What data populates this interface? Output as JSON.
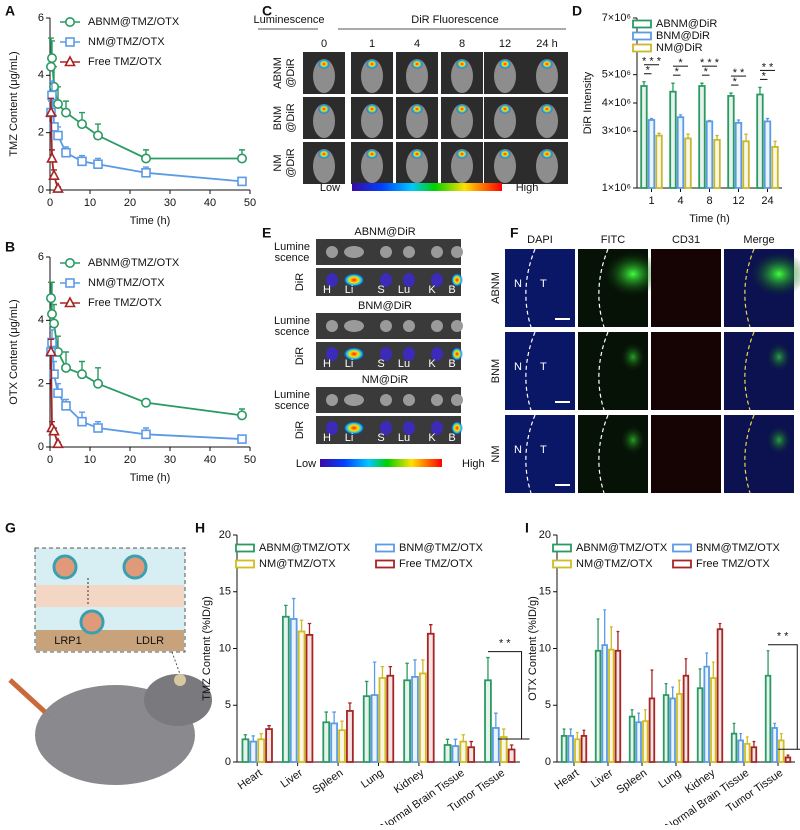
{
  "panel_labels": [
    "A",
    "B",
    "C",
    "D",
    "E",
    "F",
    "G",
    "H",
    "I"
  ],
  "chart_data": [
    {
      "type": "line",
      "y_label": "TMZ Content (μg/mL)",
      "x_label": "Time (h)",
      "xlim": [
        0,
        50
      ],
      "xticks": [
        0,
        10,
        20,
        30,
        40,
        50
      ],
      "ylim": [
        0,
        6
      ],
      "yticks": [
        0,
        2,
        4,
        6
      ],
      "legend": "upper right",
      "series": [
        {
          "name": "ABNM@TMZ/OTX",
          "color": "#2a9a62",
          "marker": "circle",
          "x": [
            0.25,
            0.5,
            1,
            2,
            4,
            8,
            12,
            24,
            48
          ],
          "values": [
            4.3,
            4.6,
            3.6,
            3.0,
            2.7,
            2.3,
            1.9,
            1.1,
            1.1
          ],
          "errors": [
            1.0,
            0.6,
            0.7,
            0.6,
            0.4,
            0.4,
            0.4,
            0.3,
            0.3
          ]
        },
        {
          "name": "NM@TMZ/OTX",
          "color": "#5b9be6",
          "marker": "square",
          "x": [
            0.25,
            0.5,
            1,
            2,
            4,
            8,
            12,
            24,
            48
          ],
          "values": [
            2.7,
            3.3,
            2.2,
            1.9,
            1.3,
            1.0,
            0.9,
            0.6,
            0.3
          ],
          "errors": [
            0.4,
            0.5,
            0.4,
            0.3,
            0.2,
            0.2,
            0.2,
            0.2,
            0.1
          ]
        },
        {
          "name": "Free TMZ/OTX",
          "color": "#a82424",
          "marker": "triangle",
          "x": [
            0.25,
            0.5,
            1,
            2
          ],
          "values": [
            2.7,
            1.1,
            0.5,
            0.05
          ],
          "errors": [
            0.5,
            0.3,
            0.2,
            0.05
          ]
        }
      ]
    },
    {
      "type": "line",
      "y_label": "OTX Content (μg/mL)",
      "x_label": "Time (h)",
      "xlim": [
        0,
        50
      ],
      "xticks": [
        0,
        10,
        20,
        30,
        40,
        50
      ],
      "ylim": [
        0,
        6
      ],
      "yticks": [
        0,
        2,
        4,
        6
      ],
      "legend": "upper right",
      "series": [
        {
          "name": "ABNM@TMZ/OTX",
          "color": "#2a9a62",
          "marker": "circle",
          "x": [
            0.25,
            0.5,
            1,
            2,
            4,
            8,
            12,
            24,
            48
          ],
          "values": [
            4.7,
            4.2,
            3.9,
            3.0,
            2.5,
            2.3,
            2.0,
            1.4,
            1.0
          ],
          "errors": [
            0.5,
            1.0,
            0.6,
            0.5,
            0.5,
            0.4,
            0.5,
            0.1,
            0.2
          ]
        },
        {
          "name": "NM@TMZ/OTX",
          "color": "#5b9be6",
          "marker": "square",
          "x": [
            0.25,
            0.5,
            1,
            2,
            4,
            8,
            12,
            24,
            48
          ],
          "values": [
            3.0,
            3.3,
            2.3,
            1.7,
            1.3,
            0.8,
            0.6,
            0.4,
            0.25
          ],
          "errors": [
            0.4,
            0.4,
            0.4,
            0.3,
            0.2,
            0.3,
            0.2,
            0.2,
            0.1
          ]
        },
        {
          "name": "Free TMZ/OTX",
          "color": "#a82424",
          "marker": "triangle",
          "x": [
            0.25,
            0.5,
            1,
            2
          ],
          "values": [
            3.0,
            0.6,
            0.5,
            0.1
          ],
          "errors": [
            0.4,
            0.2,
            0.1,
            0.05
          ]
        }
      ]
    },
    {
      "type": "bar",
      "y_label": "DiR Intensity",
      "x_label": "Time (h)",
      "categories": [
        "1",
        "4",
        "8",
        "12",
        "24"
      ],
      "ylim": [
        1000000,
        7000000
      ],
      "yticks": [
        {
          "value": 1000000,
          "label": "1×10⁶"
        },
        {
          "value": 3000000,
          "label": "3×10⁶"
        },
        {
          "value": 4000000,
          "label": "4×10⁶"
        },
        {
          "value": 5000000,
          "label": "5×10⁶"
        },
        {
          "value": 7000000,
          "label": "7×10⁶"
        }
      ],
      "legend": "upper left",
      "series": [
        {
          "name": "ABNM@DiR",
          "color": "#2a9a62",
          "values": [
            4600000,
            4400000,
            4600000,
            4250000,
            4300000
          ],
          "errors": [
            150000,
            300000,
            100000,
            100000,
            250000
          ]
        },
        {
          "name": "BNM@DiR",
          "color": "#5b9be6",
          "values": [
            3400000,
            3500000,
            3350000,
            3300000,
            3350000
          ],
          "errors": [
            50000,
            80000,
            30000,
            100000,
            100000
          ]
        },
        {
          "name": "NM@DiR",
          "color": "#c9b82a",
          "values": [
            2850000,
            2750000,
            2700000,
            2650000,
            2450000
          ],
          "errors": [
            80000,
            150000,
            150000,
            250000,
            200000
          ]
        }
      ],
      "significance": [
        [
          "* * *",
          "*"
        ],
        [
          "*",
          "*"
        ],
        [
          "* * *",
          "*"
        ],
        [
          "* *",
          "*"
        ],
        [
          "* *",
          "*"
        ]
      ]
    },
    {
      "type": "bar",
      "y_label": "TMZ Content (%ID/g)",
      "categories": [
        "Heart",
        "Liver",
        "Spleen",
        "Lung",
        "Kidney",
        "Normal Brain Tissue",
        "Tumor Tissue"
      ],
      "ylim": [
        0,
        20
      ],
      "yticks": [
        0,
        5,
        10,
        15,
        20
      ],
      "legend": "upper left",
      "series": [
        {
          "name": "ABNM@TMZ/OTX",
          "color": "#2a9a62",
          "values": [
            2.0,
            12.8,
            3.5,
            5.8,
            7.2,
            1.5,
            7.2
          ],
          "errors": [
            0.4,
            1.0,
            0.9,
            1.3,
            1.5,
            0.5,
            2.0
          ]
        },
        {
          "name": "BNM@TMZ/OTX",
          "color": "#5b9be6",
          "values": [
            1.8,
            12.6,
            3.4,
            5.9,
            7.5,
            1.4,
            3.0
          ],
          "errors": [
            0.5,
            1.8,
            1.0,
            2.9,
            1.5,
            0.6,
            1.3
          ]
        },
        {
          "name": "NM@TMZ/OTX",
          "color": "#d0bd22",
          "values": [
            2.0,
            11.5,
            2.8,
            7.4,
            7.8,
            1.8,
            2.2
          ],
          "errors": [
            0.5,
            1.0,
            0.8,
            1.0,
            1.2,
            0.6,
            0.7
          ]
        },
        {
          "name": "Free TMZ/OTX",
          "color": "#a82424",
          "values": [
            2.9,
            11.2,
            4.5,
            7.6,
            11.3,
            1.3,
            1.1
          ],
          "errors": [
            0.3,
            1.0,
            0.7,
            0.8,
            0.8,
            0.5,
            0.4
          ]
        }
      ],
      "significance": [
        null,
        null,
        null,
        null,
        null,
        null,
        "* *"
      ]
    },
    {
      "type": "bar",
      "y_label": "OTX Content (%ID/g)",
      "categories": [
        "Heart",
        "Liver",
        "Spleen",
        "Lung",
        "Kidney",
        "Normal Brain Tissue",
        "Tumor Tissue"
      ],
      "ylim": [
        0,
        20
      ],
      "yticks": [
        0,
        5,
        10,
        15,
        20
      ],
      "legend": "upper left",
      "series": [
        {
          "name": "ABNM@TMZ/OTX",
          "color": "#2a9a62",
          "values": [
            2.3,
            9.8,
            4.0,
            5.9,
            6.5,
            2.5,
            7.6
          ],
          "errors": [
            0.6,
            2.8,
            0.6,
            1.0,
            1.7,
            0.9,
            2.2
          ]
        },
        {
          "name": "BNM@TMZ/OTX",
          "color": "#5b9be6",
          "values": [
            2.3,
            10.3,
            3.5,
            5.6,
            8.4,
            1.9,
            3.0
          ],
          "errors": [
            0.6,
            3.1,
            0.8,
            1.0,
            1.2,
            0.6,
            0.4
          ]
        },
        {
          "name": "NM@TMZ/OTX",
          "color": "#d0bd22",
          "values": [
            2.0,
            9.9,
            3.6,
            6.0,
            7.4,
            1.6,
            1.9
          ],
          "errors": [
            0.6,
            2.0,
            1.0,
            1.2,
            1.4,
            0.6,
            0.6
          ]
        },
        {
          "name": "Free TMZ/OTX",
          "color": "#a82424",
          "values": [
            2.3,
            9.8,
            5.6,
            7.6,
            11.7,
            1.3,
            0.4
          ],
          "errors": [
            0.5,
            1.7,
            2.5,
            1.5,
            0.5,
            0.5,
            0.2
          ]
        }
      ],
      "significance": [
        null,
        null,
        null,
        null,
        null,
        null,
        "* *"
      ]
    }
  ],
  "imaging_c": {
    "header_left": "Luminescence",
    "header_right": "DiR Fluorescence",
    "columns": [
      "0",
      "1",
      "4",
      "8",
      "12",
      "24 h"
    ],
    "rows": [
      [
        "ABNM",
        "@DiR"
      ],
      [
        "BNM",
        "@DiR"
      ],
      [
        "NM",
        "@DiR"
      ]
    ],
    "scale": [
      "Low",
      "High"
    ]
  },
  "imaging_e": {
    "groups": [
      "ABNM@DiR",
      "BNM@DiR",
      "NM@DiR"
    ],
    "row_luminescence": [
      "Lumine",
      "scence"
    ],
    "row_dir": "DiR",
    "organs": [
      "H",
      "Li",
      "S",
      "Lu",
      "K",
      "B"
    ],
    "scale": [
      "Low",
      "High"
    ]
  },
  "imaging_f": {
    "columns": [
      "DAPI",
      "FITC",
      "CD31",
      "Merge"
    ],
    "rows": [
      "ABNM",
      "BNM",
      "NM"
    ],
    "regions": [
      "N",
      "T"
    ]
  },
  "schematic_g": {
    "receptors": [
      "LRP1",
      "LDLR"
    ]
  }
}
